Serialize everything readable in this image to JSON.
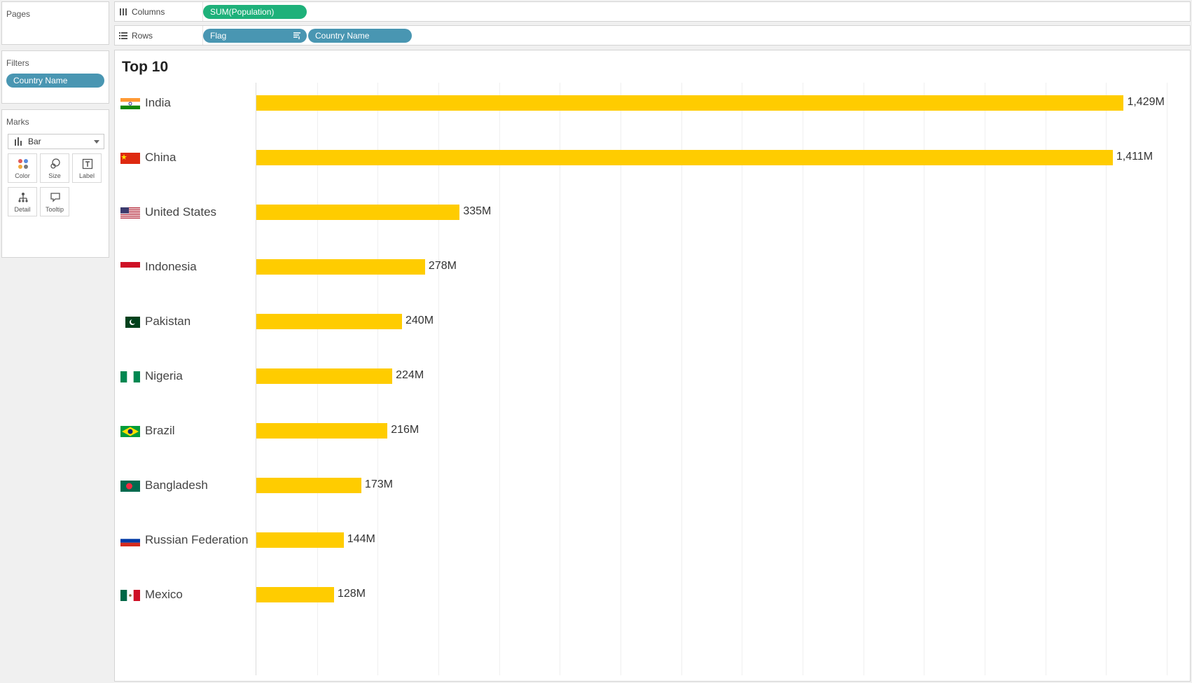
{
  "pages_panel": {
    "title": "Pages"
  },
  "filters_panel": {
    "title": "Filters",
    "pills": [
      "Country Name"
    ]
  },
  "marks_panel": {
    "title": "Marks",
    "mark_type": "Bar",
    "buttons": [
      "Color",
      "Size",
      "Label",
      "Detail",
      "Tooltip"
    ]
  },
  "columns_shelf": {
    "label": "Columns",
    "pills": [
      "SUM(Population)"
    ]
  },
  "rows_shelf": {
    "label": "Rows",
    "pills": [
      "Flag",
      "Country Name"
    ]
  },
  "colors": {
    "bar": "#ffcc00",
    "dimension_pill": "#4996b2",
    "measure_pill": "#1eb17a"
  },
  "chart_data": {
    "type": "bar",
    "orientation": "horizontal",
    "title": "Top 10",
    "categories": [
      "India",
      "China",
      "United States",
      "Indonesia",
      "Pakistan",
      "Nigeria",
      "Brazil",
      "Bangladesh",
      "Russian Federation",
      "Mexico"
    ],
    "values": [
      1429,
      1411,
      335,
      278,
      240,
      224,
      216,
      173,
      144,
      128
    ],
    "value_labels": [
      "1,429M",
      "1,411M",
      "335M",
      "278M",
      "240M",
      "224M",
      "216M",
      "173M",
      "144M",
      "128M"
    ],
    "flags": [
      "india-flag",
      "china-flag",
      "united-states-flag",
      "indonesia-flag",
      "pakistan-flag",
      "nigeria-flag",
      "brazil-flag",
      "bangladesh-flag",
      "russia-flag",
      "mexico-flag"
    ],
    "unit": "M",
    "xlim": [
      0,
      1500
    ],
    "grid": true,
    "legend": "none"
  }
}
